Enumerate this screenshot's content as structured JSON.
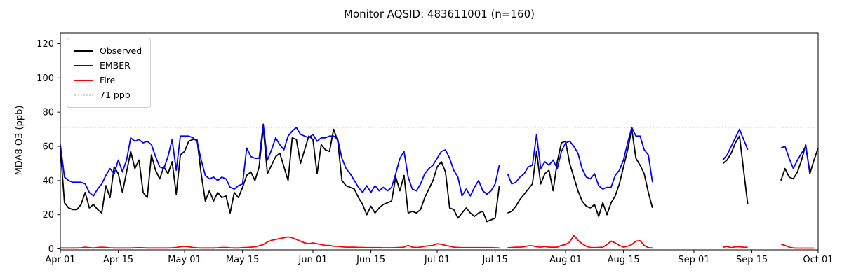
{
  "title": "Monitor AQSID: 483611001 (n=160)",
  "chart_data": {
    "type": "line",
    "title": "Monitor AQSID: 483611001 (n=160)",
    "xlabel": "",
    "ylabel": "MDA8 O3 (ppb)",
    "x_axis_note": "days are offsets from Apr 01; n=160 observed days; gaps Jul 17, Aug 23-Sep 07, Sep 15-21",
    "x_range_days": 183,
    "ylim": [
      0,
      126
    ],
    "grid": false,
    "legend_position": "upper left",
    "x_ticks": [
      {
        "day": 0,
        "label": "Apr 01"
      },
      {
        "day": 14,
        "label": "Apr 15"
      },
      {
        "day": 30,
        "label": "May 01"
      },
      {
        "day": 44,
        "label": "May 15"
      },
      {
        "day": 61,
        "label": "Jun 01"
      },
      {
        "day": 75,
        "label": "Jun 15"
      },
      {
        "day": 91,
        "label": "Jul 01"
      },
      {
        "day": 105,
        "label": "Jul 15"
      },
      {
        "day": 122,
        "label": "Aug 01"
      },
      {
        "day": 136,
        "label": "Aug 15"
      },
      {
        "day": 153,
        "label": "Sep 01"
      },
      {
        "day": 167,
        "label": "Sep 15"
      },
      {
        "day": 183,
        "label": "Oct 01"
      }
    ],
    "y_ticks": [
      0,
      20,
      40,
      60,
      80,
      100,
      120
    ],
    "threshold": {
      "value": 71,
      "label": "71 ppb",
      "color": "#d3d3d3",
      "line_style": "dotted"
    },
    "legend_items": [
      {
        "label": "Observed",
        "color": "#000000",
        "line_style": "solid"
      },
      {
        "label": "EMBER",
        "color": "#0000ff",
        "line_style": "solid"
      },
      {
        "label": "Fire",
        "color": "#ff0000",
        "line_style": "solid"
      },
      {
        "label": "71 ppb",
        "color": "#d3d3d3",
        "line_style": "dotted"
      }
    ],
    "series": [
      {
        "name": "Observed",
        "color": "#000000",
        "segments": [
          {
            "start_day": 0,
            "values": [
              59,
              27,
              24,
              23,
              23,
              26,
              33,
              24,
              26,
              23,
              21,
              37,
              30,
              48,
              44,
              33,
              45,
              57,
              47,
              52,
              33,
              30,
              55,
              46,
              41,
              48,
              44,
              51,
              32,
              55,
              57,
              63,
              64,
              64,
              44,
              28,
              34,
              28,
              33,
              30,
              31,
              21,
              33,
              30,
              36,
              43,
              45,
              40,
              48,
              71,
              44,
              49,
              54,
              56,
              48,
              40,
              65,
              64,
              50,
              58,
              66,
              64,
              44,
              61,
              58,
              57,
              70,
              63,
              40,
              37,
              36,
              35,
              30,
              26,
              20,
              25,
              21,
              24,
              26,
              27,
              28,
              42,
              34,
              43,
              21,
              22,
              21,
              23,
              30,
              35,
              40,
              48,
              51,
              45,
              24,
              23,
              18,
              21,
              24,
              21,
              19,
              21,
              22,
              16,
              17,
              18,
              37
            ]
          },
          {
            "start_day": 108,
            "values": [
              21,
              22,
              25,
              29,
              32,
              35,
              38,
              57,
              38,
              44,
              46,
              34,
              51,
              62,
              63,
              50,
              42,
              34,
              28,
              25,
              24,
              26,
              19,
              27,
              20,
              27,
              31,
              38,
              48,
              58,
              70,
              53,
              49,
              44,
              33,
              24
            ]
          },
          {
            "start_day": 160,
            "values": [
              50,
              52,
              56,
              62,
              66,
              46,
              26
            ]
          },
          {
            "start_day": 174,
            "values": [
              40,
              47,
              42,
              41,
              45,
              52,
              61,
              44,
              52,
              59
            ]
          }
        ]
      },
      {
        "name": "EMBER",
        "color": "#0000ff",
        "segments": [
          {
            "start_day": 0,
            "values": [
              61,
              42,
              40,
              39,
              39,
              39,
              38,
              33,
              31,
              35,
              38,
              43,
              47,
              44,
              52,
              45,
              52,
              65,
              63,
              64,
              62,
              63,
              61,
              54,
              48,
              47,
              54,
              64,
              46,
              66,
              66,
              66,
              65,
              63,
              52,
              43,
              41,
              42,
              40,
              42,
              41,
              36,
              35,
              37,
              38,
              59,
              54,
              53,
              53,
              73,
              52,
              58,
              65,
              61,
              58,
              66,
              69,
              71,
              67,
              66,
              65,
              67,
              63,
              65,
              65,
              66,
              66,
              64,
              53,
              47,
              44,
              40,
              36,
              33,
              37,
              33,
              37,
              34,
              36,
              34,
              36,
              44,
              53,
              57,
              42,
              35,
              34,
              38,
              44,
              47,
              49,
              53,
              57,
              58,
              53,
              46,
              42,
              31,
              35,
              31,
              36,
              40,
              34,
              32,
              34,
              38,
              49
            ]
          },
          {
            "start_day": 108,
            "values": [
              44,
              38,
              39,
              42,
              44,
              48,
              49,
              67,
              47,
              51,
              49,
              52,
              47,
              57,
              62,
              63,
              60,
              56,
              47,
              42,
              41,
              44,
              37,
              35,
              36,
              36,
              43,
              46,
              52,
              62,
              71,
              66,
              66,
              58,
              55,
              39
            ]
          },
          {
            "start_day": 160,
            "values": [
              52,
              55,
              60,
              65,
              70,
              64,
              58
            ]
          },
          {
            "start_day": 174,
            "values": [
              59,
              60,
              53,
              47,
              52,
              56,
              60,
              45
            ]
          }
        ]
      },
      {
        "name": "Fire",
        "color": "#ff0000",
        "segments": [
          {
            "start_day": 0,
            "values": [
              0.5,
              0.5,
              0.5,
              0.5,
              0.5,
              0.6,
              1,
              0.7,
              0.5,
              0.8,
              1,
              0.8,
              0.6,
              0.5,
              0.5,
              0.5,
              0.5,
              0.5,
              0.6,
              0.7,
              0.6,
              0.5,
              0.5,
              0.5,
              0.5,
              0.5,
              0.5,
              0.6,
              0.8,
              1.2,
              1.5,
              1.2,
              0.8,
              0.6,
              0.5,
              0.5,
              0.5,
              0.5,
              0.6,
              0.8,
              0.8,
              0.6,
              0.5,
              0.5,
              0.7,
              0.8,
              1,
              1.2,
              1.8,
              2.5,
              4,
              5,
              5.5,
              6,
              6.5,
              7,
              6.5,
              5.5,
              4.5,
              3.5,
              3,
              3.5,
              3,
              2.5,
              2,
              2,
              1.5,
              1.5,
              1.2,
              1,
              1,
              1,
              0.8,
              0.8,
              0.7,
              0.7,
              0.7,
              0.7,
              0.6,
              0.6,
              0.6,
              0.7,
              0.8,
              1,
              2,
              1,
              0.8,
              1,
              1.5,
              1.8,
              2,
              3,
              2.7,
              2,
              1.5,
              1,
              0.8,
              0.7,
              0.7,
              0.7,
              0.7,
              0.7,
              0.7,
              0.7,
              0.7,
              0.6,
              0.5
            ]
          },
          {
            "start_day": 108,
            "values": [
              0.6,
              0.8,
              1,
              1,
              1.2,
              1.8,
              1.8,
              1.2,
              1,
              1.4,
              1,
              1,
              1,
              2,
              2.5,
              4,
              8,
              5,
              3,
              1.5,
              0.8,
              0.7,
              0.8,
              1,
              2.5,
              4.5,
              3.5,
              2,
              1,
              1.5,
              2.5,
              4.5,
              4.8,
              2,
              0.7,
              0.5
            ]
          },
          {
            "start_day": 160,
            "values": [
              1,
              1.4,
              0.7,
              1.2,
              1.2,
              1,
              0.9
            ]
          },
          {
            "start_day": 174,
            "values": [
              2.8,
              2,
              1,
              0.5,
              0.4,
              0.4,
              0.4,
              0.4,
              0.4
            ]
          }
        ]
      }
    ]
  }
}
